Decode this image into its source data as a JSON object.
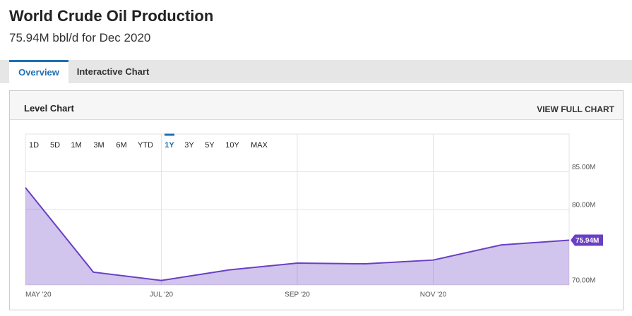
{
  "header": {
    "title": "World Crude Oil Production",
    "subtitle": "75.94M bbl/d for Dec 2020"
  },
  "tabs": [
    "Overview",
    "Interactive Chart"
  ],
  "panel": {
    "title": "Level Chart",
    "link": "VIEW FULL CHART"
  },
  "ranges": [
    "1D",
    "5D",
    "1M",
    "3M",
    "6M",
    "YTD",
    "1Y",
    "3Y",
    "5Y",
    "10Y",
    "MAX"
  ],
  "chart_data": {
    "type": "area",
    "categories": [
      "MAY '20",
      null,
      "JUL '20",
      null,
      "SEP '20",
      null,
      "NOV '20",
      null,
      null
    ],
    "series": [
      {
        "name": "World Crude Oil Production",
        "color": "#6a3fc4",
        "values": [
          82.9,
          71.7,
          70.6,
          72.0,
          72.9,
          72.8,
          73.3,
          75.3,
          75.94
        ],
        "value_labels": [
          null,
          null,
          null,
          null,
          null,
          null,
          null,
          null,
          "75.94M"
        ]
      }
    ],
    "ylim": [
      70,
      90
    ],
    "yticks": [
      {
        "value": 70,
        "label": "70.00M"
      },
      {
        "value": 80,
        "label": "80.00M"
      },
      {
        "value": 85,
        "label": "85.00M"
      }
    ],
    "grid": true
  }
}
